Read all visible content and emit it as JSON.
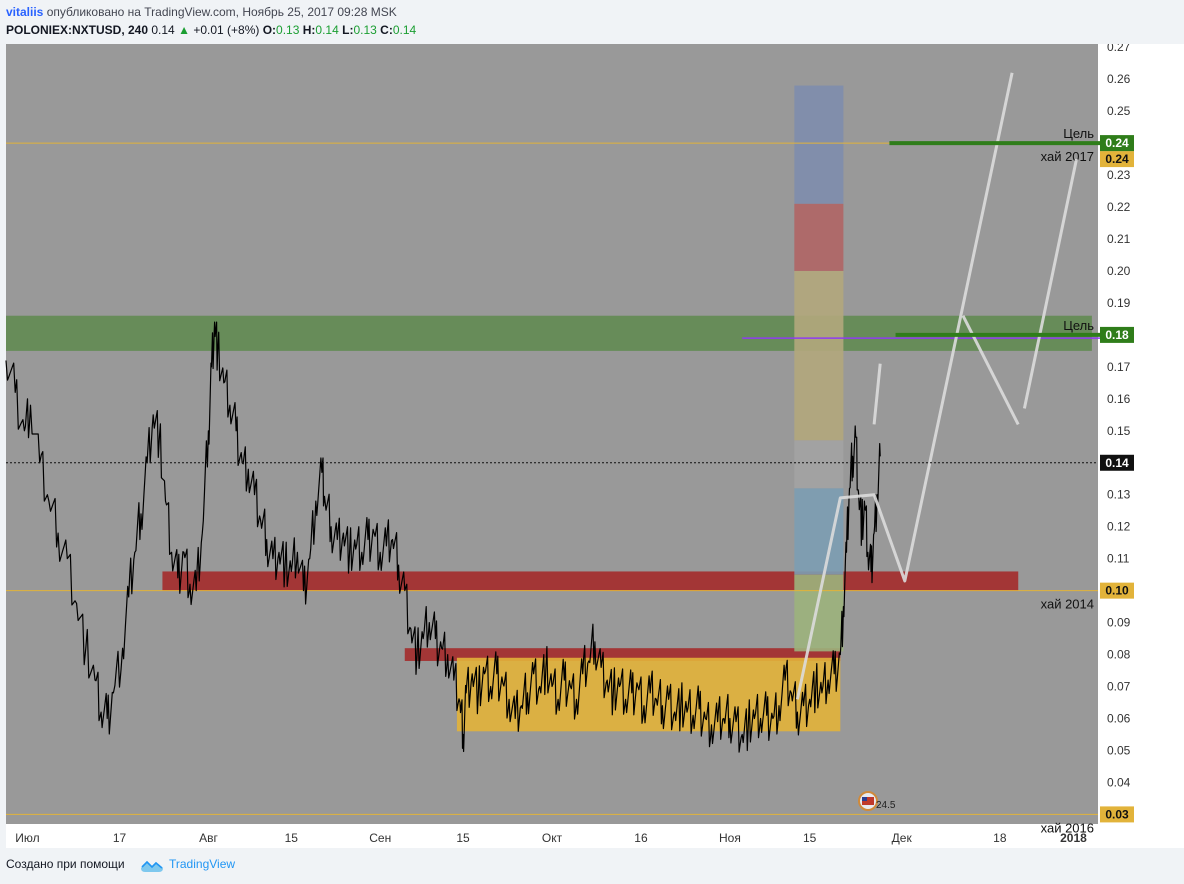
{
  "header": {
    "author": "vitaliis",
    "published": "опубликовано на TradingView.com, Ноябрь 25, 2017 09:28 MSK",
    "symbol": "POLONIEX:NXTUSD, 240",
    "last": "0.14",
    "change_arrow": "▲",
    "change": "+0.01 (+8%)",
    "o_label": "O:",
    "o": "0.13",
    "h_label": "H:",
    "h": "0.14",
    "l_label": "L:",
    "l": "0.13",
    "c_label": "C:",
    "c": "0.14"
  },
  "footer": {
    "created_with": "Создано при помощи",
    "brand": "TradingView",
    "logo_icon": "tradingview-logo-icon"
  },
  "colors": {
    "plot_bg": "#999999",
    "price": "#000000",
    "axis_bg": "#ffffff",
    "green_zone": "#5e8a4e",
    "red_zone": "#a52424",
    "yellow_zone": "#e2b33a",
    "target": "#2f7d1a",
    "level_line": "#e2b33a",
    "purple": "#8e3cf0",
    "projection": "#dcdcdc"
  },
  "chart_data": {
    "type": "line",
    "series": [
      {
        "points": [
          [
            0,
            0.172
          ],
          [
            3,
            0.162
          ],
          [
            6,
            0.15
          ],
          [
            8,
            0.158
          ],
          [
            11,
            0.14
          ],
          [
            14,
            0.128
          ],
          [
            17,
            0.118
          ],
          [
            20,
            0.11
          ],
          [
            23,
            0.096
          ],
          [
            26,
            0.082
          ],
          [
            29,
            0.072
          ],
          [
            31,
            0.062
          ],
          [
            33,
            0.06
          ],
          [
            35,
            0.068
          ],
          [
            38,
            0.082
          ],
          [
            40,
            0.098
          ],
          [
            42,
            0.112
          ],
          [
            44,
            0.124
          ],
          [
            46,
            0.14
          ],
          [
            48,
            0.155
          ],
          [
            50,
            0.148
          ],
          [
            52,
            0.128
          ],
          [
            54,
            0.112
          ],
          [
            56,
            0.104
          ],
          [
            58,
            0.112
          ],
          [
            60,
            0.102
          ],
          [
            62,
            0.1
          ],
          [
            64,
            0.118
          ],
          [
            66,
            0.15
          ],
          [
            67,
            0.17
          ],
          [
            68,
            0.184
          ],
          [
            69,
            0.175
          ],
          [
            71,
            0.165
          ],
          [
            73,
            0.158
          ],
          [
            75,
            0.15
          ],
          [
            77,
            0.14
          ],
          [
            79,
            0.138
          ],
          [
            81,
            0.13
          ],
          [
            83,
            0.122
          ],
          [
            85,
            0.116
          ],
          [
            87,
            0.11
          ],
          [
            89,
            0.112
          ],
          [
            91,
            0.108
          ],
          [
            93,
            0.106
          ],
          [
            95,
            0.112
          ],
          [
            97,
            0.1
          ],
          [
            99,
            0.11
          ],
          [
            101,
            0.128
          ],
          [
            103,
            0.137
          ],
          [
            104,
            0.128
          ],
          [
            106,
            0.12
          ],
          [
            108,
            0.116
          ],
          [
            110,
            0.118
          ],
          [
            112,
            0.112
          ],
          [
            114,
            0.113
          ],
          [
            116,
            0.112
          ],
          [
            118,
            0.116
          ],
          [
            120,
            0.118
          ],
          [
            122,
            0.112
          ],
          [
            124,
            0.114
          ],
          [
            126,
            0.116
          ],
          [
            128,
            0.108
          ],
          [
            130,
            0.1
          ],
          [
            132,
            0.088
          ],
          [
            134,
            0.08
          ],
          [
            136,
            0.085
          ],
          [
            138,
            0.09
          ],
          [
            140,
            0.085
          ],
          [
            142,
            0.082
          ],
          [
            144,
            0.08
          ],
          [
            146,
            0.072
          ],
          [
            148,
            0.065
          ],
          [
            149,
            0.055
          ],
          [
            150,
            0.068
          ],
          [
            152,
            0.074
          ],
          [
            154,
            0.068
          ],
          [
            156,
            0.074
          ],
          [
            158,
            0.07
          ],
          [
            160,
            0.074
          ],
          [
            162,
            0.071
          ],
          [
            164,
            0.066
          ],
          [
            166,
            0.06
          ],
          [
            168,
            0.064
          ],
          [
            170,
            0.068
          ],
          [
            172,
            0.074
          ],
          [
            174,
            0.07
          ],
          [
            176,
            0.076
          ],
          [
            178,
            0.07
          ],
          [
            180,
            0.066
          ],
          [
            182,
            0.072
          ],
          [
            184,
            0.07
          ],
          [
            186,
            0.066
          ],
          [
            188,
            0.074
          ],
          [
            190,
            0.078
          ],
          [
            192,
            0.084
          ],
          [
            194,
            0.076
          ],
          [
            196,
            0.072
          ],
          [
            198,
            0.068
          ],
          [
            200,
            0.07
          ],
          [
            202,
            0.066
          ],
          [
            204,
            0.068
          ],
          [
            206,
            0.07
          ],
          [
            208,
            0.064
          ],
          [
            210,
            0.068
          ],
          [
            212,
            0.066
          ],
          [
            214,
            0.064
          ],
          [
            216,
            0.066
          ],
          [
            218,
            0.062
          ],
          [
            220,
            0.064
          ],
          [
            222,
            0.062
          ],
          [
            224,
            0.061
          ],
          [
            226,
            0.063
          ],
          [
            228,
            0.06
          ],
          [
            230,
            0.058
          ],
          [
            232,
            0.059
          ],
          [
            234,
            0.06
          ],
          [
            236,
            0.06
          ],
          [
            238,
            0.059
          ],
          [
            240,
            0.055
          ],
          [
            242,
            0.058
          ],
          [
            244,
            0.06
          ],
          [
            246,
            0.06
          ],
          [
            248,
            0.061
          ],
          [
            250,
            0.06
          ],
          [
            252,
            0.064
          ],
          [
            254,
            0.072
          ],
          [
            256,
            0.068
          ],
          [
            258,
            0.062
          ],
          [
            260,
            0.064
          ],
          [
            262,
            0.066
          ],
          [
            264,
            0.07
          ],
          [
            266,
            0.068
          ],
          [
            268,
            0.072
          ],
          [
            270,
            0.074
          ],
          [
            272,
            0.08
          ],
          [
            273,
            0.095
          ],
          [
            274,
            0.112
          ],
          [
            275,
            0.132
          ],
          [
            276,
            0.142
          ],
          [
            277,
            0.148
          ],
          [
            278,
            0.13
          ],
          [
            279,
            0.12
          ],
          [
            280,
            0.126
          ],
          [
            281,
            0.112
          ],
          [
            282,
            0.106
          ],
          [
            283,
            0.118
          ],
          [
            284,
            0.13
          ],
          [
            285,
            0.142
          ]
        ]
      }
    ],
    "x_range": [
      0,
      356
    ],
    "ylim": [
      0.027,
      0.271
    ],
    "x_ticks": [
      {
        "label": "Июл",
        "x": 7
      },
      {
        "label": "17",
        "x": 37
      },
      {
        "label": "Авг",
        "x": 66
      },
      {
        "label": "15",
        "x": 93
      },
      {
        "label": "Сен",
        "x": 122
      },
      {
        "label": "15",
        "x": 149
      },
      {
        "label": "Окт",
        "x": 178
      },
      {
        "label": "16",
        "x": 207
      },
      {
        "label": "Ноя",
        "x": 236
      },
      {
        "label": "15",
        "x": 262
      },
      {
        "label": "Дек",
        "x": 292
      },
      {
        "label": "18",
        "x": 324
      },
      {
        "label": "2018",
        "x": 348
      }
    ],
    "y_ticks": [
      "0.03",
      "0.04",
      "0.05",
      "0.06",
      "0.07",
      "0.08",
      "0.09",
      "0.10",
      "0.11",
      "0.12",
      "0.13",
      "0.14",
      "0.15",
      "0.16",
      "0.17",
      "0.18",
      "0.19",
      "0.20",
      "0.21",
      "0.22",
      "0.23",
      "0.24",
      "0.25",
      "0.26",
      "0.27"
    ],
    "zones": [
      {
        "kind": "green",
        "x0": 0,
        "x1": 354,
        "y0": 0.175,
        "y1": 0.186
      },
      {
        "kind": "red",
        "x0": 51,
        "x1": 330,
        "y0": 0.1,
        "y1": 0.106
      },
      {
        "kind": "red",
        "x0": 130,
        "x1": 272,
        "y0": 0.078,
        "y1": 0.082
      },
      {
        "kind": "yellow",
        "x0": 147,
        "x1": 272,
        "y0": 0.056,
        "y1": 0.079
      }
    ],
    "fib_blocks": [
      {
        "x0": 257,
        "x1": 273,
        "y0": 0.221,
        "y1": 0.258,
        "color": "#7e8dad"
      },
      {
        "x0": 257,
        "x1": 273,
        "y0": 0.2,
        "y1": 0.221,
        "color": "#b06565"
      },
      {
        "x0": 257,
        "x1": 273,
        "y0": 0.147,
        "y1": 0.2,
        "color": "#b3a77c"
      },
      {
        "x0": 257,
        "x1": 273,
        "y0": 0.132,
        "y1": 0.147,
        "color": "#a3a3a3"
      },
      {
        "x0": 257,
        "x1": 273,
        "y0": 0.105,
        "y1": 0.132,
        "color": "#7c9db2"
      },
      {
        "x0": 257,
        "x1": 273,
        "y0": 0.081,
        "y1": 0.105,
        "color": "#9cb27c"
      }
    ],
    "levels": [
      {
        "label": "хай 2017",
        "value": 0.24,
        "badge": "0.24",
        "color": "#e2b33a"
      },
      {
        "label": "хай 2014",
        "value": 0.1,
        "badge": "0.10",
        "color": "#e2b33a"
      },
      {
        "label": "хай 2016",
        "value": 0.03,
        "badge": "0.03",
        "color": "#e2b33a"
      }
    ],
    "targets": [
      {
        "label": "Цель",
        "value": 0.24,
        "badge": "0.24",
        "x0": 288,
        "x1": 362
      },
      {
        "label": "Цель",
        "value": 0.18,
        "badge": "0.18",
        "x0": 290,
        "x1": 362
      }
    ],
    "purple_line": {
      "value": 0.179,
      "x0": 240,
      "x1": 362
    },
    "current_price": {
      "value": 0.14,
      "badge": "0.14"
    },
    "projections": [
      [
        [
          258,
          0.066
        ],
        [
          272,
          0.129
        ],
        [
          283,
          0.13
        ],
        [
          293,
          0.103
        ],
        [
          328,
          0.262
        ]
      ],
      [
        [
          283,
          0.152
        ],
        [
          285,
          0.171
        ]
      ],
      [
        [
          312,
          0.186
        ],
        [
          330,
          0.152
        ]
      ],
      [
        [
          332,
          0.157
        ],
        [
          349,
          0.235
        ]
      ]
    ],
    "volume_marker": "24.5"
  }
}
